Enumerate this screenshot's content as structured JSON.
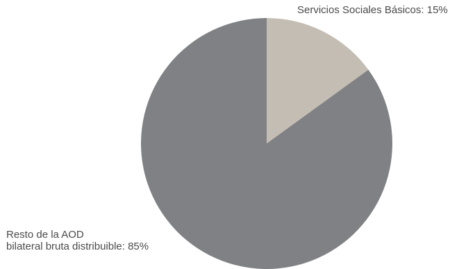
{
  "chart_data": {
    "type": "pie",
    "slices": [
      {
        "name": "Servicios Sociales Básicos",
        "value": 15,
        "label_lines": [
          "Servicios Sociales Básicos: 15%"
        ],
        "color": "#c4bdb3"
      },
      {
        "name": "Resto de la AOD bilateral bruta distribuible",
        "value": 85,
        "label_lines": [
          "Resto de la AOD",
          "bilateral bruta distribuible: 85%"
        ],
        "color": "#808184"
      }
    ],
    "start_angle": "12 o'clock",
    "direction": "clockwise"
  }
}
